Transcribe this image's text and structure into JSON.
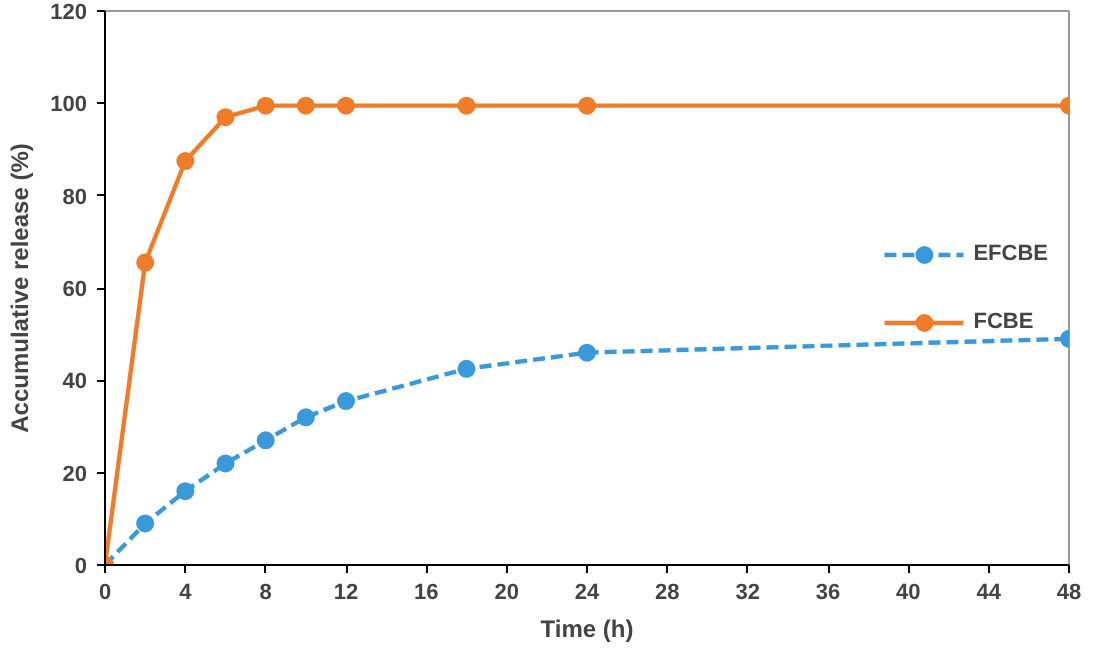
{
  "chart_data": {
    "type": "line",
    "xlabel": "Time (h)",
    "ylabel": "Accumulative release (%)",
    "xlim": [
      0,
      48
    ],
    "xticks": [
      0,
      4,
      8,
      12,
      16,
      20,
      24,
      28,
      32,
      36,
      40,
      44,
      48
    ],
    "ylim": [
      0,
      120
    ],
    "yticks": [
      0,
      20,
      40,
      60,
      80,
      100,
      120
    ],
    "grid": false,
    "legend": "right",
    "marker": "circle",
    "series": [
      {
        "name": "EFCBE",
        "color": "#3a9ad9",
        "line_style": "dashed",
        "x": [
          0,
          2,
          4,
          6,
          8,
          10,
          12,
          18,
          24,
          48
        ],
        "values": [
          0,
          9,
          16,
          22,
          27,
          32,
          35.5,
          42.5,
          46,
          49
        ]
      },
      {
        "name": "FCBE",
        "color": "#f07c2a",
        "line_style": "solid",
        "x": [
          0,
          2,
          4,
          6,
          8,
          10,
          12,
          18,
          24,
          48
        ],
        "values": [
          0,
          65.5,
          87.5,
          97,
          99.5,
          99.5,
          99.5,
          99.5,
          99.5,
          99.5
        ]
      }
    ]
  }
}
